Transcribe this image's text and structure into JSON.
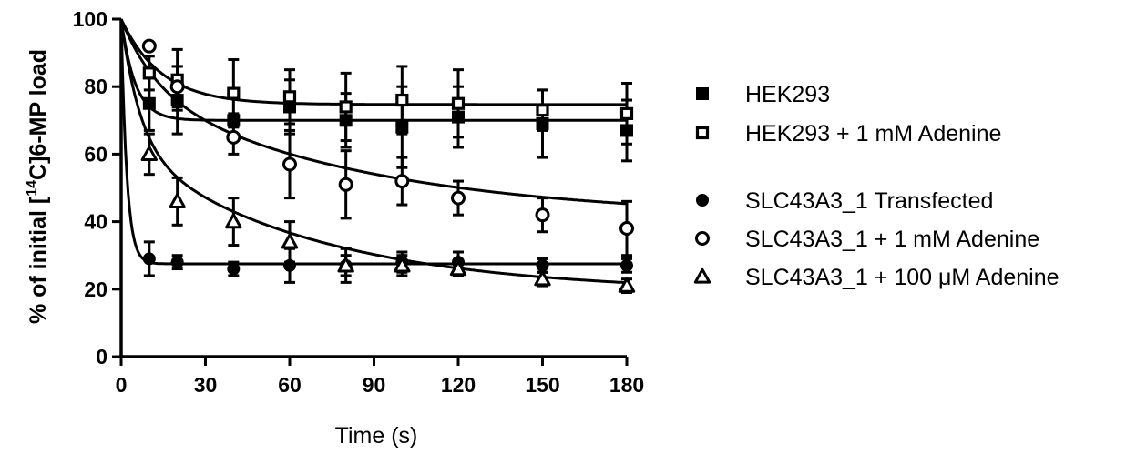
{
  "chart_data": {
    "type": "scatter",
    "xlabel": "Time (s)",
    "ylabel": {
      "prefix": "% of initial [",
      "superscript": "14",
      "suffix": "C]6-MP load"
    },
    "xlim": [
      0,
      180
    ],
    "ylim": [
      0,
      100
    ],
    "xticks": [
      0,
      30,
      60,
      90,
      120,
      150,
      180
    ],
    "yticks": [
      0,
      20,
      40,
      60,
      80,
      100
    ],
    "grid": false,
    "legend_position": "right",
    "series": [
      {
        "name": "HEK293",
        "marker": "filled-square",
        "x": [
          10,
          20,
          40,
          60,
          80,
          100,
          120,
          150,
          180
        ],
        "y": [
          75,
          76,
          70,
          74,
          70,
          68,
          71,
          69,
          67
        ],
        "err": [
          8,
          10,
          2,
          8,
          8,
          12,
          9,
          10,
          9
        ],
        "fit": {
          "plateau": 70,
          "k": 0.2
        }
      },
      {
        "name": "HEK293 + 1 mM Adenine",
        "marker": "open-square",
        "x": [
          10,
          20,
          40,
          60,
          80,
          100,
          120,
          150,
          180
        ],
        "y": [
          84,
          82,
          78,
          77,
          74,
          76,
          75,
          73,
          72
        ],
        "err": [
          5,
          9,
          10,
          8,
          10,
          10,
          10,
          6,
          9
        ],
        "fit": {
          "plateau": 74.7,
          "k": 0.07
        }
      },
      {
        "name": "SLC43A3_1  Transfected",
        "marker": "filled-circle",
        "x": [
          10,
          20,
          40,
          60,
          80,
          100,
          120,
          150,
          180
        ],
        "y": [
          29,
          28,
          26,
          27,
          27,
          28,
          28,
          27,
          27
        ],
        "err": [
          5,
          2,
          2,
          5,
          3,
          3,
          3,
          2,
          2
        ],
        "fit": {
          "plateau": 27.5,
          "k": 0.5
        }
      },
      {
        "name": "SLC43A3_1 + 1 mM Adenine",
        "marker": "open-circle",
        "x": [
          10,
          20,
          40,
          60,
          80,
          100,
          120,
          150,
          180
        ],
        "y": [
          92,
          80,
          65,
          57,
          51,
          52,
          47,
          42,
          38
        ],
        "err": [
          1,
          6,
          5,
          10,
          10,
          7,
          5,
          5,
          8
        ],
        "fit": {
          "plateau": 40.8,
          "amp1": 20,
          "k1": 0.08,
          "amp2": 39.2,
          "k2": 0.012
        }
      },
      {
        "name": "SLC43A3_1 + 100 μM Adenine",
        "marker": "open-triangle",
        "x": [
          10,
          20,
          40,
          60,
          80,
          100,
          120,
          150,
          180
        ],
        "y": [
          60,
          46,
          40,
          34,
          27,
          27,
          26,
          23,
          21
        ],
        "err": [
          6,
          7,
          7,
          6,
          5,
          3,
          2,
          2,
          2
        ],
        "fit": {
          "plateau": 19,
          "amp1": 37.5,
          "k1": 0.15,
          "amp2": 43.5,
          "k2": 0.015
        }
      }
    ]
  },
  "colors": {
    "ink": "#000000",
    "background": "#ffffff"
  }
}
